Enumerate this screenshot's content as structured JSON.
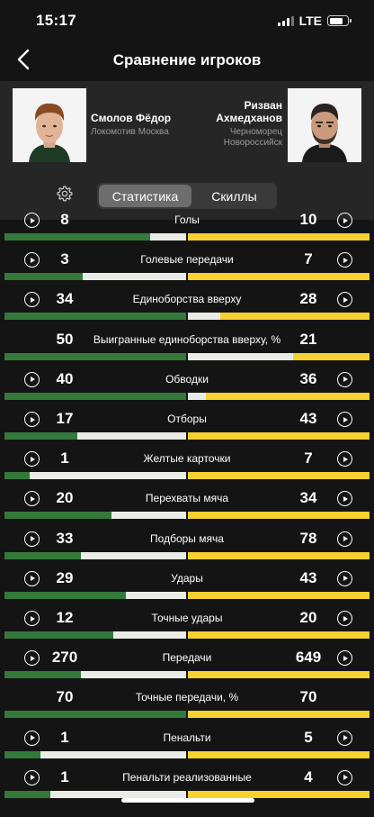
{
  "status": {
    "time": "15:17",
    "network": "LTE"
  },
  "header": {
    "title": "Сравнение игроков"
  },
  "player_left": {
    "name": "Смолов Фёдор",
    "team": "Локомотив Москва"
  },
  "player_right": {
    "name": "Ризван Ахмедханов",
    "team": "Черноморец Новороссийск"
  },
  "tabs": [
    {
      "label": "Статистика",
      "selected": true
    },
    {
      "label": "Скиллы",
      "selected": false
    }
  ],
  "colors": {
    "left_bar": "#337a3a",
    "right_bar": "#f6d130",
    "bar_track": "#e9ece6",
    "background": "#141414",
    "panel": "#262626"
  },
  "stats": [
    {
      "label": "Голы",
      "left": "8",
      "right": "10",
      "left_share": 0.8,
      "right_share": 1.0,
      "video": true
    },
    {
      "label": "Голевые передачи",
      "left": "3",
      "right": "7",
      "left_share": 0.43,
      "right_share": 1.0,
      "video": true
    },
    {
      "label": "Единоборства вверху",
      "left": "34",
      "right": "28",
      "left_share": 1.0,
      "right_share": 0.82,
      "video": true
    },
    {
      "label": "Выигранные единоборства вверху, %",
      "left": "50",
      "right": "21",
      "left_share": 1.0,
      "right_share": 0.42,
      "video": false
    },
    {
      "label": "Обводки",
      "left": "40",
      "right": "36",
      "left_share": 1.0,
      "right_share": 0.9,
      "video": true
    },
    {
      "label": "Отборы",
      "left": "17",
      "right": "43",
      "left_share": 0.4,
      "right_share": 1.0,
      "video": true
    },
    {
      "label": "Желтые карточки",
      "left": "1",
      "right": "7",
      "left_share": 0.14,
      "right_share": 1.0,
      "video": true
    },
    {
      "label": "Перехваты мяча",
      "left": "20",
      "right": "34",
      "left_share": 0.59,
      "right_share": 1.0,
      "video": true
    },
    {
      "label": "Подборы мяча",
      "left": "33",
      "right": "78",
      "left_share": 0.42,
      "right_share": 1.0,
      "video": true
    },
    {
      "label": "Удары",
      "left": "29",
      "right": "43",
      "left_share": 0.67,
      "right_share": 1.0,
      "video": true
    },
    {
      "label": "Точные удары",
      "left": "12",
      "right": "20",
      "left_share": 0.6,
      "right_share": 1.0,
      "video": true
    },
    {
      "label": "Передачи",
      "left": "270",
      "right": "649",
      "left_share": 0.42,
      "right_share": 1.0,
      "video": true
    },
    {
      "label": "Точные передачи, %",
      "left": "70",
      "right": "70",
      "left_share": 1.0,
      "right_share": 1.0,
      "video": false
    },
    {
      "label": "Пенальти",
      "left": "1",
      "right": "5",
      "left_share": 0.2,
      "right_share": 1.0,
      "video": true
    },
    {
      "label": "Пенальти реализованные",
      "left": "1",
      "right": "4",
      "left_share": 0.25,
      "right_share": 1.0,
      "video": true
    }
  ]
}
